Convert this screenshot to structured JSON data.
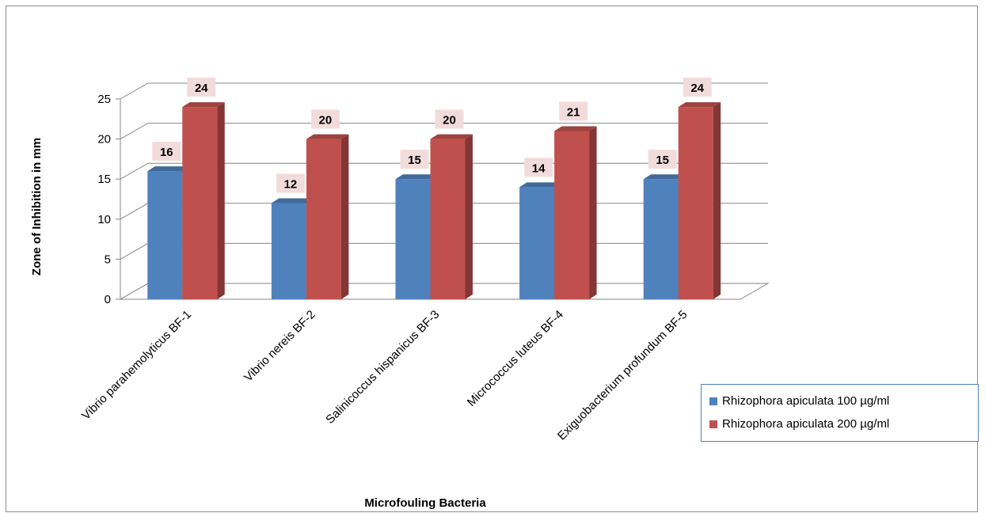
{
  "chart_data": {
    "type": "bar",
    "categories": [
      "Vibrio parahemolyticus BF-1",
      "Vibrio nereis BF-2",
      "Salinicoccus hispanicus BF-3",
      "Micrococcus luteus BF-4",
      "Exiguobacterium profundum BF-5"
    ],
    "series": [
      {
        "name": "Rhizophora apiculata 100 µg/ml",
        "values": [
          16,
          12,
          15,
          14,
          15
        ],
        "color": "#4f81bd"
      },
      {
        "name": "Rhizophora apiculata 200 µg/ml",
        "values": [
          24,
          20,
          20,
          21,
          24
        ],
        "color": "#c0504d"
      }
    ],
    "xlabel": "Microfouling Bacteria",
    "ylabel": "Zone of Inhibition in mm",
    "ylim": [
      0,
      25
    ],
    "yticks": [
      0,
      5,
      10,
      15,
      20,
      25
    ],
    "grid": true,
    "legend_position": "right",
    "data_labels": true
  }
}
